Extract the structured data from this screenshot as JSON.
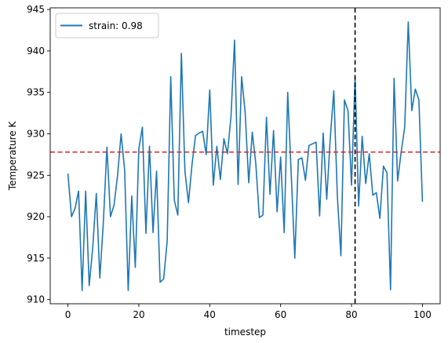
{
  "chart_data": {
    "type": "line",
    "title": "",
    "xlabel": "timestep",
    "ylabel": "Temperature K",
    "xlim": [
      -5,
      105
    ],
    "ylim": [
      909.5,
      945.2
    ],
    "xticks": [
      0,
      20,
      40,
      60,
      80,
      100
    ],
    "yticks": [
      910,
      915,
      920,
      925,
      930,
      935,
      940,
      945
    ],
    "grid": false,
    "legend_position": "upper-left",
    "series": [
      {
        "name": "strain: 0.98",
        "color": "#1f77b4",
        "x": [
          0,
          1,
          2,
          3,
          4,
          5,
          6,
          7,
          8,
          9,
          10,
          11,
          12,
          13,
          14,
          15,
          16,
          17,
          18,
          19,
          20,
          21,
          22,
          23,
          24,
          25,
          26,
          27,
          28,
          29,
          30,
          31,
          32,
          33,
          34,
          35,
          36,
          37,
          38,
          39,
          40,
          41,
          42,
          43,
          44,
          45,
          46,
          47,
          48,
          49,
          50,
          51,
          52,
          53,
          54,
          55,
          56,
          57,
          58,
          59,
          60,
          61,
          62,
          63,
          64,
          65,
          66,
          67,
          68,
          69,
          70,
          71,
          72,
          73,
          74,
          75,
          76,
          77,
          78,
          79,
          80,
          81,
          82,
          83,
          84,
          85,
          86,
          87,
          88,
          89,
          90,
          91,
          92,
          93,
          94,
          95,
          96,
          97,
          98,
          99,
          100
        ],
        "values": [
          925.2,
          920.0,
          921.0,
          923.1,
          911.1,
          923.1,
          911.7,
          916.3,
          922.8,
          912.6,
          919.4,
          928.4,
          920.0,
          921.4,
          925.0,
          930.0,
          925.6,
          911.1,
          922.5,
          913.9,
          928.2,
          930.8,
          918.0,
          928.5,
          918.1,
          925.5,
          912.1,
          912.5,
          917.1,
          936.9,
          922.0,
          920.2,
          939.7,
          925.5,
          921.7,
          926.3,
          929.8,
          930.1,
          930.3,
          927.5,
          935.3,
          923.8,
          928.5,
          924.5,
          929.4,
          927.6,
          932.1,
          941.3,
          923.9,
          936.9,
          932.5,
          924.1,
          930.2,
          926.4,
          919.9,
          920.2,
          932.0,
          922.7,
          930.4,
          920.6,
          927.2,
          918.1,
          935.0,
          925.0,
          915.0,
          926.9,
          927.1,
          924.4,
          928.6,
          928.8,
          929.0,
          920.1,
          930.1,
          922.1,
          929.5,
          935.2,
          922.5,
          915.3,
          934.1,
          932.8,
          923.8,
          936.9,
          921.3,
          929.7,
          924.0,
          927.6,
          922.6,
          922.9,
          919.8,
          926.1,
          925.3,
          911.2,
          936.7,
          924.3,
          927.8,
          930.8,
          943.5,
          932.8,
          935.4,
          934.1,
          921.8
        ]
      }
    ],
    "reference_lines": [
      {
        "orientation": "horizontal",
        "value": 927.8,
        "color": "#d62728",
        "style": "dashed"
      },
      {
        "orientation": "vertical",
        "value": 81,
        "color": "#000000",
        "style": "dashed"
      }
    ]
  }
}
